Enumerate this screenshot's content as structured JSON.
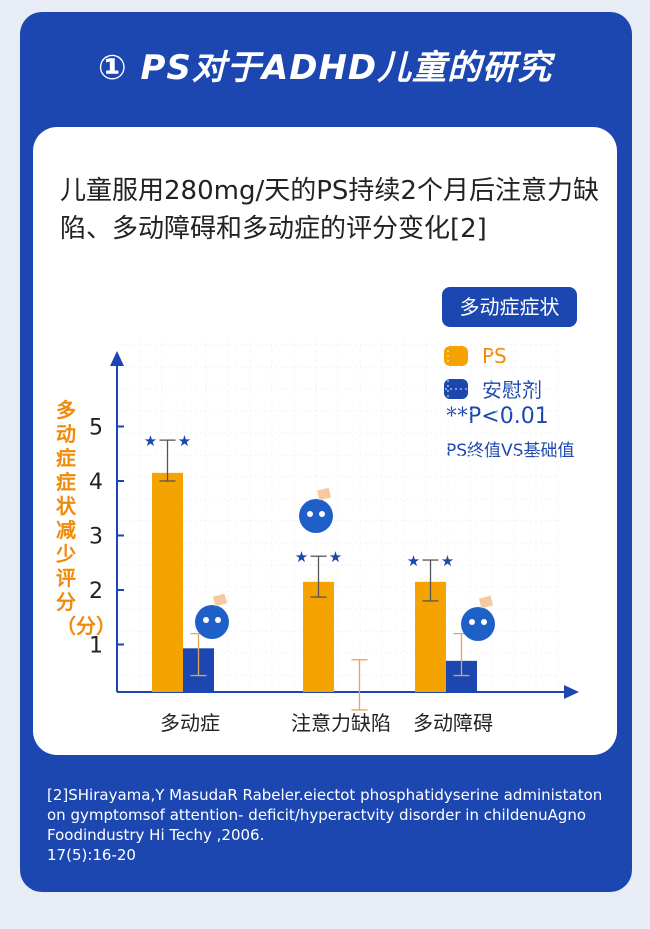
{
  "title": "① PS对于ADHD儿童的研究",
  "chart_data": {
    "type": "bar",
    "title": "儿童服用280mg/天的PS持续2个月后注意力缺陷、多动障碍和多动症的评分变化[2]",
    "ylabel": "多动症症状减少评分（分）",
    "xlabel": "",
    "categories": [
      "多动症",
      "注意力缺陷",
      "多动障碍"
    ],
    "yticks": [
      "1",
      "2",
      "3",
      "4",
      "5"
    ],
    "ylim": [
      0,
      5.5
    ],
    "series": [
      {
        "name": "PS",
        "color": "#f5a300",
        "values": [
          4.15,
          2.15,
          2.15
        ],
        "err_high": [
          4.75,
          2.62,
          2.55
        ],
        "err_low": [
          4.0,
          1.87,
          1.8
        ]
      },
      {
        "name": "安慰剂",
        "color": "#1c47b1",
        "values": [
          0.93,
          0,
          0.7
        ],
        "err_high": [
          1.2,
          0.72,
          1.2
        ],
        "err_low": [
          0.43,
          -0.2,
          0.43
        ]
      }
    ],
    "legend_title": "多动症症状",
    "legend": "top-right",
    "significance": "**P<0.01",
    "significance_note": "PS终值VS基础值",
    "grid": true
  },
  "reference": [
    "[2]SHirayama,Y MasudaR Rabeler.eiectot phosphatidyserine administaton",
    "on gymptomsof attention- deficit/hyperactvity disorder in childenuAgno",
    "Foodindustry Hi Techy ,2006.",
    "17(5):16-20"
  ]
}
